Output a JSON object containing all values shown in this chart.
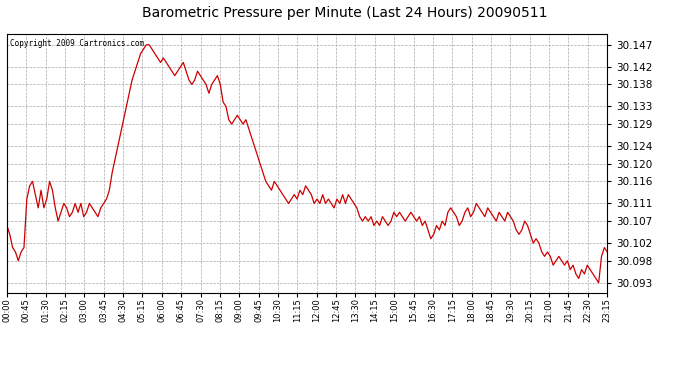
{
  "title": "Barometric Pressure per Minute (Last 24 Hours) 20090511",
  "copyright": "Copyright 2009 Cartronics.com",
  "line_color": "#cc0000",
  "bg_color": "#ffffff",
  "grid_color": "#aaaaaa",
  "ylim": [
    30.0908,
    30.1495
  ],
  "yticks": [
    30.093,
    30.098,
    30.102,
    30.107,
    30.111,
    30.116,
    30.12,
    30.124,
    30.129,
    30.133,
    30.138,
    30.142,
    30.147
  ],
  "xtick_labels": [
    "00:00",
    "00:45",
    "01:30",
    "02:15",
    "03:00",
    "03:45",
    "04:30",
    "05:15",
    "06:00",
    "06:45",
    "07:30",
    "08:15",
    "09:00",
    "09:45",
    "10:30",
    "11:15",
    "12:00",
    "12:45",
    "13:30",
    "14:15",
    "15:00",
    "15:45",
    "16:30",
    "17:15",
    "18:00",
    "18:45",
    "19:30",
    "20:15",
    "21:00",
    "21:45",
    "22:30",
    "23:15"
  ],
  "pressure_data": [
    30.106,
    30.104,
    30.101,
    30.1,
    30.098,
    30.1,
    30.101,
    30.112,
    30.115,
    30.116,
    30.113,
    30.11,
    30.114,
    30.11,
    30.112,
    30.116,
    30.114,
    30.11,
    30.107,
    30.109,
    30.111,
    30.11,
    30.108,
    30.109,
    30.111,
    30.109,
    30.111,
    30.108,
    30.109,
    30.111,
    30.11,
    30.109,
    30.108,
    30.11,
    30.111,
    30.112,
    30.114,
    30.118,
    30.121,
    30.124,
    30.127,
    30.13,
    30.133,
    30.136,
    30.139,
    30.141,
    30.143,
    30.145,
    30.146,
    30.147,
    30.147,
    30.146,
    30.145,
    30.144,
    30.143,
    30.144,
    30.143,
    30.142,
    30.141,
    30.14,
    30.141,
    30.142,
    30.143,
    30.141,
    30.139,
    30.138,
    30.139,
    30.141,
    30.14,
    30.139,
    30.138,
    30.136,
    30.138,
    30.139,
    30.14,
    30.138,
    30.134,
    30.133,
    30.13,
    30.129,
    30.13,
    30.131,
    30.13,
    30.129,
    30.13,
    30.128,
    30.126,
    30.124,
    30.122,
    30.12,
    30.118,
    30.116,
    30.115,
    30.114,
    30.116,
    30.115,
    30.114,
    30.113,
    30.112,
    30.111,
    30.112,
    30.113,
    30.112,
    30.114,
    30.113,
    30.115,
    30.114,
    30.113,
    30.111,
    30.112,
    30.111,
    30.113,
    30.111,
    30.112,
    30.111,
    30.11,
    30.112,
    30.111,
    30.113,
    30.111,
    30.113,
    30.112,
    30.111,
    30.11,
    30.108,
    30.107,
    30.108,
    30.107,
    30.108,
    30.106,
    30.107,
    30.106,
    30.108,
    30.107,
    30.106,
    30.107,
    30.109,
    30.108,
    30.109,
    30.108,
    30.107,
    30.108,
    30.109,
    30.108,
    30.107,
    30.108,
    30.106,
    30.107,
    30.105,
    30.103,
    30.104,
    30.106,
    30.105,
    30.107,
    30.106,
    30.109,
    30.11,
    30.109,
    30.108,
    30.106,
    30.107,
    30.109,
    30.11,
    30.108,
    30.109,
    30.111,
    30.11,
    30.109,
    30.108,
    30.11,
    30.109,
    30.108,
    30.107,
    30.109,
    30.108,
    30.107,
    30.109,
    30.108,
    30.107,
    30.105,
    30.104,
    30.105,
    30.107,
    30.106,
    30.104,
    30.102,
    30.103,
    30.102,
    30.1,
    30.099,
    30.1,
    30.099,
    30.097,
    30.098,
    30.099,
    30.098,
    30.097,
    30.098,
    30.096,
    30.097,
    30.095,
    30.094,
    30.096,
    30.095,
    30.097,
    30.096,
    30.095,
    30.094,
    30.093,
    30.099,
    30.101,
    30.1
  ]
}
